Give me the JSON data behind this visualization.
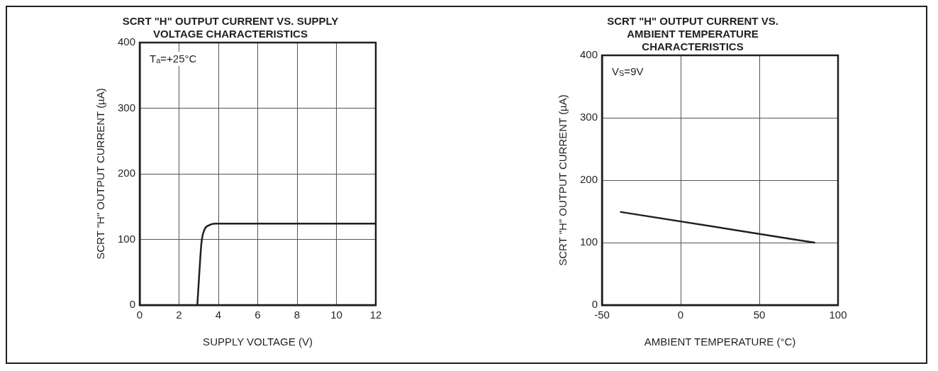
{
  "chart_data": [
    {
      "type": "line",
      "title": "SCRT \"H\" OUTPUT CURRENT VS. SUPPLY VOLTAGE CHARACTERISTICS",
      "xlabel": "SUPPLY VOLTAGE (V)",
      "ylabel": "SCRT \"H\" OUTPUT CURRENT (µA)",
      "annotations": [
        "T$_{a}$=+25°C"
      ],
      "xlim": [
        0,
        12
      ],
      "xticks": [
        0,
        2,
        4,
        6,
        8,
        10,
        12
      ],
      "ylim": [
        0,
        400
      ],
      "yticks": [
        0,
        100,
        200,
        300,
        400
      ],
      "grid": true,
      "marker": "none",
      "line_style": "solid",
      "series": [
        {
          "color": "#231f20",
          "x": [
            2.93,
            3.04,
            3.14,
            3.28,
            3.56,
            3.84,
            6,
            12
          ],
          "values": [
            0,
            53,
            95,
            114,
            122,
            124,
            124,
            124
          ]
        }
      ]
    },
    {
      "type": "line",
      "title": "SCRT \"H\" OUTPUT CURRENT VS. AMBIENT TEMPERATURE CHARACTERISTICS",
      "xlabel": "AMBIENT TEMPERATURE (°C)",
      "ylabel": "SCRT \"H\" OUTPUT CURRENT (µA)",
      "annotations": [
        "V$_{S}$=9V"
      ],
      "xlim": [
        -50,
        100
      ],
      "xticks": [
        -50,
        0,
        50,
        100
      ],
      "ylim": [
        0,
        400
      ],
      "yticks": [
        0,
        100,
        200,
        300,
        400
      ],
      "grid": true,
      "marker": "none",
      "line_style": "solid",
      "series": [
        {
          "color": "#231f20",
          "x": [
            -38,
            85
          ],
          "values": [
            149,
            100
          ]
        }
      ]
    }
  ]
}
